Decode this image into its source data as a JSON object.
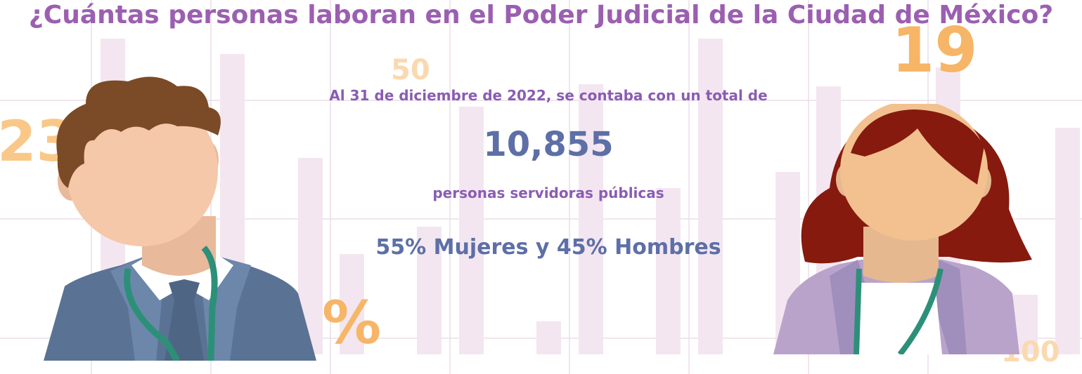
{
  "title": "¿Cuántas personas laboran en el Poder Judicial de la Ciudad de México?",
  "intro": "Al 31 de diciembre de 2022, se contaba con un total de",
  "total": "10,855",
  "subtitle": "personas servidoras públicas",
  "ratio": "55% Mujeres y 45% Hombres",
  "decorations": {
    "n50": "50",
    "n23": "23",
    "n19": "19",
    "percent": "%",
    "n100": "100"
  },
  "colors": {
    "title": "#9b5fb0",
    "text_purple": "#8a5cb3",
    "text_blue": "#5d6fa6",
    "accent_orange": "#f7b567",
    "bar_pink": "#f3e6f0"
  }
}
